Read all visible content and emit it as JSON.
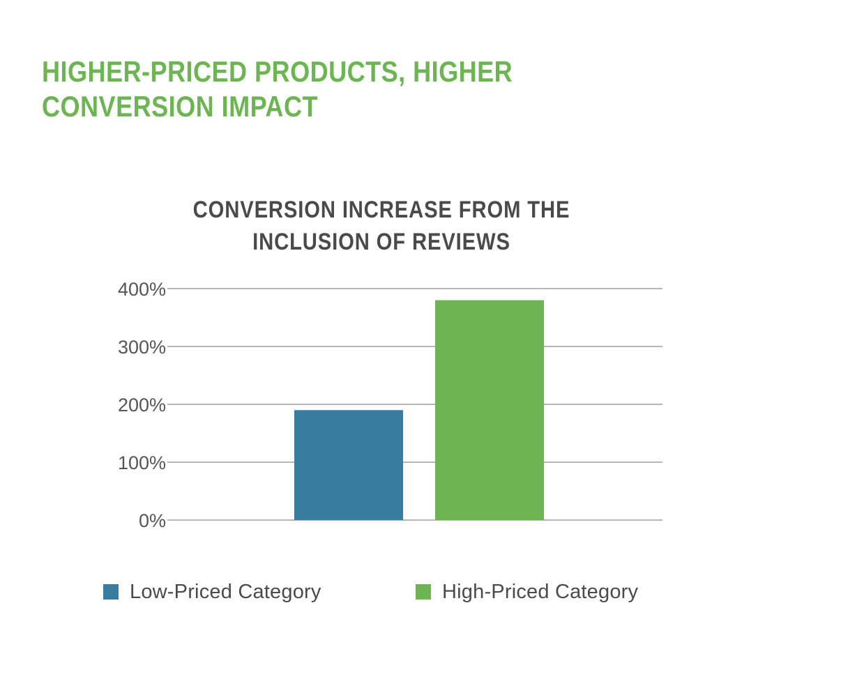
{
  "headline": {
    "line1": "HIGHER-PRICED PRODUCTS, HIGHER",
    "line2": "CONVERSION IMPACT"
  },
  "colors": {
    "headline": "#6db552",
    "low_priced": "#387d9f",
    "high_priced": "#6db552",
    "gridline": "#b5b5b5",
    "text": "#4a4a4a"
  },
  "chart_data": {
    "type": "bar",
    "title": "CONVERSION INCREASE FROM THE INCLUSION OF REVIEWS",
    "title_lines": [
      "CONVERSION INCREASE FROM THE",
      "INCLUSION OF REVIEWS"
    ],
    "xlabel": "",
    "ylabel": "",
    "ylim": [
      0,
      400
    ],
    "yticks": [
      0,
      100,
      200,
      300,
      400
    ],
    "ytick_labels": [
      "0%",
      "100%",
      "200%",
      "300%",
      "400%"
    ],
    "grid": true,
    "legend_position": "bottom",
    "series": [
      {
        "name": "Low-Priced Category",
        "values": [
          190
        ],
        "color": "#387d9f"
      },
      {
        "name": "High-Priced Category",
        "values": [
          380
        ],
        "color": "#6db552"
      }
    ]
  }
}
